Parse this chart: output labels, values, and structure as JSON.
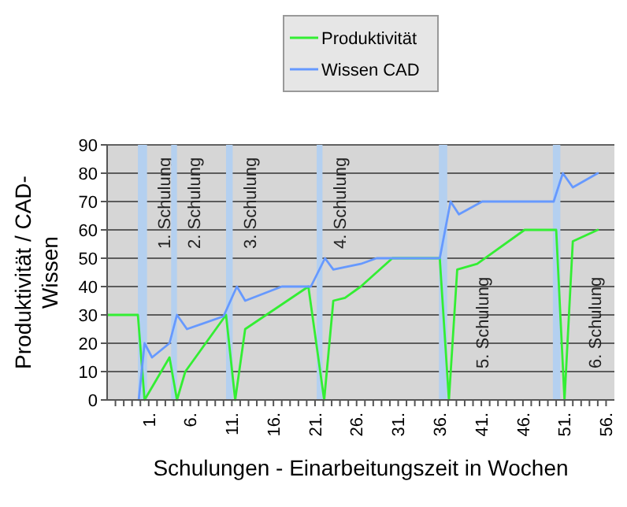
{
  "chart_data": {
    "type": "line",
    "xlabel": "Schulungen - Einarbeitungszeit in Wochen",
    "ylabel": "Produktivität / CAD-Wissen",
    "xlim": [
      -4,
      57
    ],
    "ylim": [
      0,
      90
    ],
    "yticks": [
      0,
      10,
      20,
      30,
      40,
      50,
      60,
      70,
      80,
      90
    ],
    "xticks": [
      {
        "value": -3,
        "label": null
      },
      {
        "value": -2,
        "label": null
      },
      {
        "value": -1,
        "label": null
      },
      {
        "value": 0,
        "label": null
      },
      {
        "value": 1,
        "label": "1."
      },
      {
        "value": 2,
        "label": null
      },
      {
        "value": 3,
        "label": null
      },
      {
        "value": 4,
        "label": null
      },
      {
        "value": 5,
        "label": null
      },
      {
        "value": 6,
        "label": "6."
      },
      {
        "value": 7,
        "label": null
      },
      {
        "value": 8,
        "label": null
      },
      {
        "value": 9,
        "label": null
      },
      {
        "value": 10,
        "label": null
      },
      {
        "value": 11,
        "label": "11."
      },
      {
        "value": 12,
        "label": null
      },
      {
        "value": 13,
        "label": null
      },
      {
        "value": 14,
        "label": null
      },
      {
        "value": 15,
        "label": null
      },
      {
        "value": 16,
        "label": "16."
      },
      {
        "value": 17,
        "label": null
      },
      {
        "value": 18,
        "label": null
      },
      {
        "value": 19,
        "label": null
      },
      {
        "value": 20,
        "label": null
      },
      {
        "value": 21,
        "label": "21."
      },
      {
        "value": 22,
        "label": null
      },
      {
        "value": 23,
        "label": null
      },
      {
        "value": 24,
        "label": null
      },
      {
        "value": 25,
        "label": null
      },
      {
        "value": 26,
        "label": "26."
      },
      {
        "value": 27,
        "label": null
      },
      {
        "value": 28,
        "label": null
      },
      {
        "value": 29,
        "label": null
      },
      {
        "value": 30,
        "label": null
      },
      {
        "value": 31,
        "label": "31."
      },
      {
        "value": 32,
        "label": null
      },
      {
        "value": 33,
        "label": null
      },
      {
        "value": 34,
        "label": null
      },
      {
        "value": 35,
        "label": null
      },
      {
        "value": 36,
        "label": "36."
      },
      {
        "value": 37,
        "label": null
      },
      {
        "value": 38,
        "label": null
      },
      {
        "value": 39,
        "label": null
      },
      {
        "value": 40,
        "label": null
      },
      {
        "value": 41,
        "label": "41."
      },
      {
        "value": 42,
        "label": null
      },
      {
        "value": 43,
        "label": null
      },
      {
        "value": 44,
        "label": null
      },
      {
        "value": 45,
        "label": null
      },
      {
        "value": 46,
        "label": "46."
      },
      {
        "value": 47,
        "label": null
      },
      {
        "value": 48,
        "label": null
      },
      {
        "value": 49,
        "label": null
      },
      {
        "value": 50,
        "label": null
      },
      {
        "value": 51,
        "label": "51."
      },
      {
        "value": 52,
        "label": null
      },
      {
        "value": 53,
        "label": null
      },
      {
        "value": 54,
        "label": null
      },
      {
        "value": 55,
        "label": null
      },
      {
        "value": 56,
        "label": "56."
      }
    ],
    "grid": "y",
    "legend": "top",
    "marker": "none",
    "line_style": "solid",
    "series": [
      {
        "name": "Produktivität",
        "color": "#33ee33",
        "x": [
          -4,
          -0.3,
          0.5,
          3.5,
          4.4,
          5.4,
          10.3,
          11.4,
          12.6,
          20.2,
          22.1,
          23.2,
          24.6,
          26.5,
          30.3,
          36,
          37.1,
          38.1,
          40.5,
          46.2,
          50,
          51,
          52,
          55
        ],
        "values": [
          30,
          30,
          0,
          15,
          0,
          10,
          30,
          0,
          25,
          40,
          0,
          35,
          36,
          40,
          50,
          50,
          0,
          46,
          48,
          60,
          60,
          0,
          56,
          60
        ]
      },
      {
        "name": "Wissen CAD",
        "color": "#6699ff",
        "x": [
          -0.2,
          0.5,
          1.4,
          3.5,
          4.4,
          5.6,
          10,
          11.6,
          12.6,
          17,
          20.5,
          22.2,
          23.2,
          26.5,
          28.4,
          36,
          37.3,
          38.3,
          41.1,
          49.7,
          50.8,
          52,
          55
        ],
        "values": [
          0,
          20,
          15,
          20,
          30,
          25,
          29.5,
          40,
          35,
          40,
          40,
          50,
          46,
          48,
          50,
          50,
          70,
          65.5,
          70,
          70,
          80,
          75,
          80
        ]
      }
    ],
    "bands": [
      {
        "axis": "x",
        "from": -0.3,
        "to": 0.8,
        "color": "#b4d0f0",
        "label": "1. Schulung"
      },
      {
        "axis": "x",
        "from": 3.7,
        "to": 4.4,
        "color": "#b4d0f0",
        "label": "2. Schulung"
      },
      {
        "axis": "x",
        "from": 10.3,
        "to": 11.1,
        "color": "#b4d0f0",
        "label": "3. Schulung"
      },
      {
        "axis": "x",
        "from": 21.2,
        "to": 21.9,
        "color": "#b4d0f0",
        "label": "4. Schulung"
      },
      {
        "axis": "x",
        "from": 35.9,
        "to": 36.9,
        "color": "#b4d0f0",
        "label": "5. Schulung"
      },
      {
        "axis": "x",
        "from": 49.6,
        "to": 50.5,
        "color": "#b4d0f0",
        "label": "6. Schulung"
      }
    ]
  }
}
